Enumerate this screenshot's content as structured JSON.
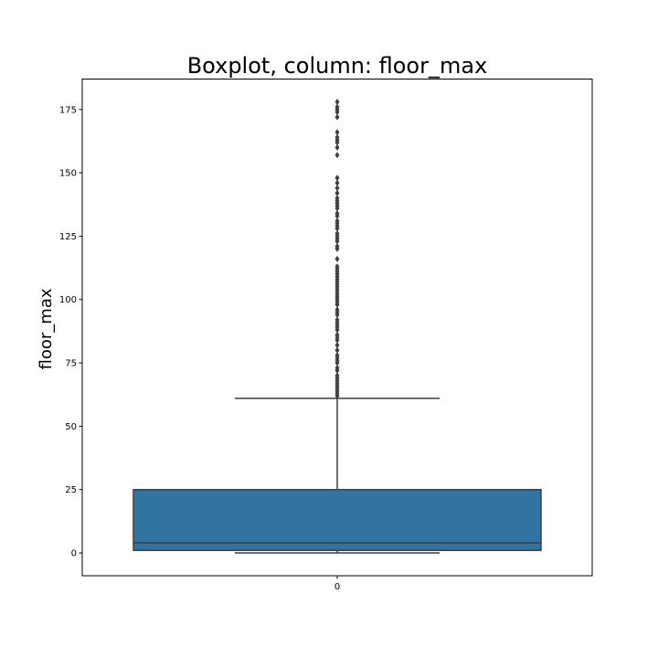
{
  "chart_data": {
    "type": "box",
    "title": "Boxplot, column: floor_max",
    "xlabel": "",
    "ylabel": "floor_max",
    "categories": [
      "0"
    ],
    "ylim": [
      -9,
      187
    ],
    "yticks": [
      0,
      25,
      50,
      75,
      100,
      125,
      150,
      175
    ],
    "box": {
      "q1": 1,
      "median": 4,
      "q3": 25,
      "whisker_low": 0,
      "whisker_high": 61
    },
    "outliers": [
      62,
      63,
      64,
      65,
      66,
      67,
      68,
      69,
      70,
      72,
      73,
      75,
      76,
      77,
      78,
      80,
      82,
      84,
      85,
      86,
      88,
      89,
      90,
      91,
      92,
      94,
      95,
      96,
      98,
      99,
      100,
      101,
      102,
      103,
      104,
      105,
      106,
      107,
      108,
      109,
      110,
      111,
      112,
      113,
      116,
      120,
      121,
      123,
      124,
      125,
      126,
      128,
      129,
      130,
      131,
      133,
      134,
      136,
      137,
      138,
      139,
      140,
      142,
      144,
      146,
      148,
      157,
      160,
      162,
      163,
      164,
      166,
      172,
      174,
      175,
      176,
      178
    ],
    "grid": false,
    "colors": {
      "box_fill": "#3274a1",
      "line": "#3f3f3f",
      "axis": "#000000"
    }
  }
}
